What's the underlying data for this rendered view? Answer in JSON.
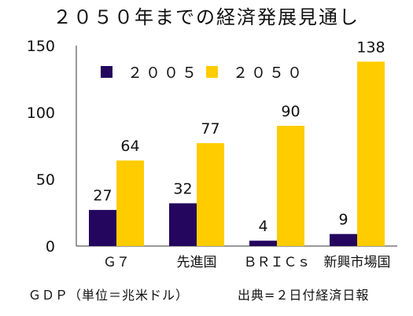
{
  "chart_data": {
    "type": "bar",
    "title": "２０５０年までの経済発展見通し",
    "categories": [
      "Ｇ７",
      "先進国",
      "ＢＲＩＣｓ",
      "新興市場国"
    ],
    "series": [
      {
        "name": "２００５",
        "values": [
          27,
          32,
          4,
          9
        ],
        "color": "#24065e"
      },
      {
        "name": "２０５０",
        "values": [
          64,
          77,
          90,
          138
        ],
        "color": "#ffcc00"
      }
    ],
    "ylim": [
      0,
      150
    ],
    "yticks": [
      0,
      50,
      100,
      150
    ],
    "grid": false,
    "legend": "top-left"
  },
  "footer": {
    "unit": "ＧＤＰ（単位＝兆米ドル）",
    "source": "出典=２日付経済日報"
  }
}
